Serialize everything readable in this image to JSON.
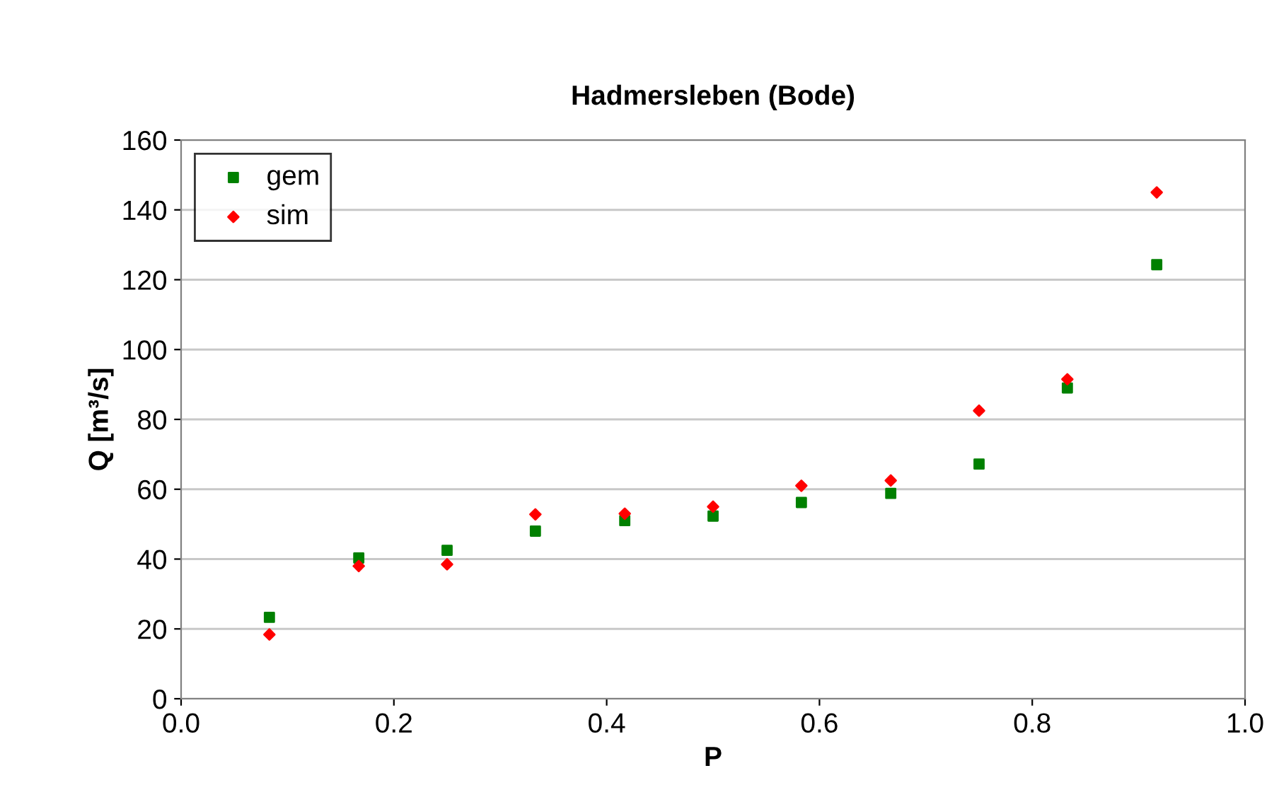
{
  "chart_data": {
    "type": "scatter",
    "title": "Hadmersleben (Bode)",
    "xlabel": "P",
    "ylabel": "Q [m³/s]",
    "x": [
      0.083,
      0.167,
      0.25,
      0.333,
      0.417,
      0.5,
      0.583,
      0.667,
      0.75,
      0.833,
      0.917
    ],
    "series": [
      {
        "name": "gem",
        "color": "#008000",
        "marker": "square",
        "values": [
          23.3,
          40.3,
          42.5,
          48,
          51,
          52.3,
          56.2,
          58.8,
          67.2,
          89,
          124.3
        ]
      },
      {
        "name": "sim",
        "color": "#ff0000",
        "marker": "diamond",
        "values": [
          18.4,
          38,
          38.5,
          52.8,
          53,
          55,
          61,
          62.5,
          82.5,
          91.5,
          145
        ]
      }
    ],
    "xlim": [
      0,
      1
    ],
    "xticks": [
      {
        "value": 0,
        "label": "0.0"
      },
      0.2,
      0.4,
      0.6,
      0.8,
      {
        "value": 1,
        "label": "1.0"
      }
    ],
    "ylim": [
      0,
      160
    ],
    "yticks": [
      0,
      20,
      40,
      60,
      80,
      100,
      120,
      140,
      160
    ],
    "grid": "y",
    "legend": "top left"
  }
}
